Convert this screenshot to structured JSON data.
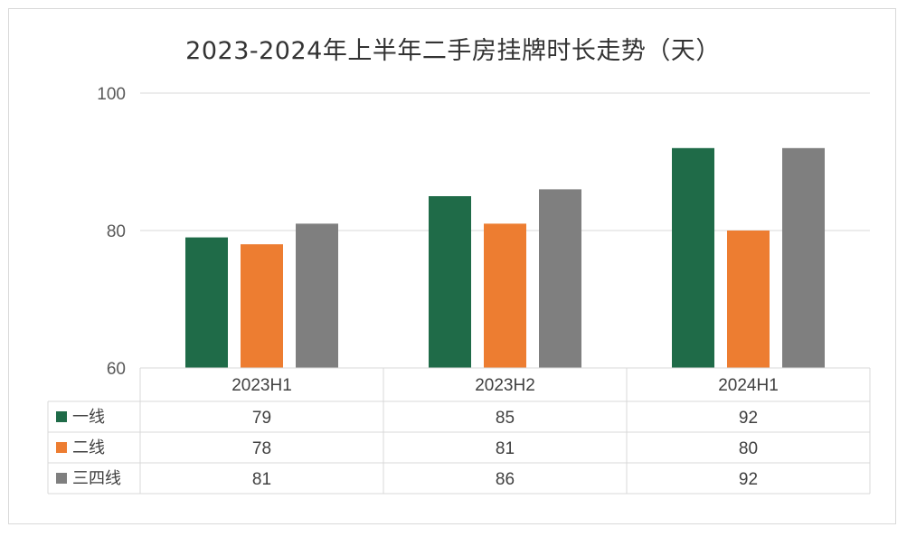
{
  "chart_data": {
    "type": "bar",
    "title": "2023-2024年上半年二手房挂牌时长走势（天）",
    "categories": [
      "2023H1",
      "2023H2",
      "2024H1"
    ],
    "series": [
      {
        "name": "一线",
        "values": [
          79,
          85,
          92
        ],
        "color": "#1f6b48"
      },
      {
        "name": "二线",
        "values": [
          78,
          81,
          80
        ],
        "color": "#ed7d31"
      },
      {
        "name": "三四线",
        "values": [
          81,
          86,
          92
        ],
        "color": "#7f7f7f"
      }
    ],
    "ylim": [
      60,
      100
    ],
    "yticks": [
      100,
      80,
      60
    ],
    "grid": true,
    "legend": "data-table"
  }
}
